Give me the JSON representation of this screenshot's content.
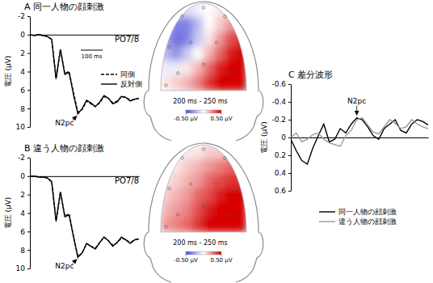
{
  "chart_data": [
    {
      "type": "line",
      "title": "A 同一人物の顔刺激",
      "channel_label": "PO7/8",
      "y_label": "電圧 (μV)",
      "x": [
        -100,
        -80,
        -60,
        -40,
        -20,
        0,
        20,
        40,
        60,
        80,
        100,
        120,
        140,
        160,
        180,
        200,
        220,
        240,
        260,
        280,
        300,
        320,
        340,
        360,
        380,
        400
      ],
      "xlim": [
        -100,
        400
      ],
      "ylim": [
        10,
        -2
      ],
      "yticks": [
        -2,
        0,
        2,
        4,
        6,
        8,
        10
      ],
      "tick_labels": "y",
      "legend": "right",
      "series": [
        {
          "name": "同側",
          "color": "#000000",
          "line_style": "dashed",
          "values": [
            0,
            0.1,
            0,
            0.1,
            0.2,
            0.5,
            4.7,
            1.6,
            4.2,
            4.0,
            6.3,
            8.4,
            8.1,
            7.2,
            7.5,
            7.8,
            7.4,
            6.7,
            6.9,
            7.4,
            7.2,
            6.7,
            6.8,
            7.1,
            7.0,
            6.9
          ]
        },
        {
          "name": "反対側",
          "color": "#000000",
          "line_style": "solid",
          "values": [
            0,
            0.1,
            0,
            0.1,
            0.2,
            0.5,
            4.8,
            1.6,
            4.3,
            4.1,
            6.5,
            8.6,
            8.0,
            7.1,
            7.4,
            7.8,
            7.3,
            6.6,
            6.9,
            7.5,
            7.3,
            6.7,
            6.8,
            7.2,
            7.0,
            6.9
          ]
        }
      ],
      "annotations": [
        {
          "text": "N2pc",
          "x": 120,
          "y": 8.6
        }
      ],
      "scale_bar": {
        "length": 100,
        "label": "100 ms"
      }
    },
    {
      "type": "heatmap",
      "subtitle": "200 ms - 250 ms",
      "cells": [
        [
          0,
          -0.1,
          -0.1,
          -0.05,
          0,
          0.05,
          0.1,
          0.1
        ],
        [
          -0.2,
          -0.35,
          -0.35,
          -0.2,
          0,
          0.1,
          0.2,
          0.25
        ],
        [
          -0.25,
          -0.4,
          -0.35,
          -0.15,
          0.05,
          0.2,
          0.35,
          0.4
        ],
        [
          -0.2,
          -0.3,
          -0.15,
          0,
          0.15,
          0.3,
          0.45,
          0.5
        ],
        [
          -0.05,
          -0.05,
          0.05,
          0.15,
          0.3,
          0.45,
          0.5,
          0.5
        ],
        [
          0.05,
          0.1,
          0.15,
          0.25,
          0.4,
          0.5,
          0.5,
          0.5
        ]
      ],
      "colorbar": {
        "range": [
          -0.5,
          0.5
        ],
        "ticks": [
          {
            "value": -0.5,
            "label": "-0.50 μV"
          },
          {
            "value": 0.5,
            "label": "0.50 μV"
          }
        ]
      }
    },
    {
      "type": "line",
      "title": "B 違う人物の顔刺激",
      "channel_label": "PO7/8",
      "y_label": "電圧 (μV)",
      "x": [
        -100,
        -80,
        -60,
        -40,
        -20,
        0,
        20,
        40,
        60,
        80,
        100,
        120,
        140,
        160,
        180,
        200,
        220,
        240,
        260,
        280,
        300,
        320,
        340,
        360,
        380,
        400
      ],
      "xlim": [
        -100,
        400
      ],
      "ylim": [
        10,
        -2
      ],
      "yticks": [
        -2,
        0,
        2,
        4,
        6,
        8,
        10
      ],
      "tick_labels": "y",
      "series": [
        {
          "name": "同側",
          "color": "#000000",
          "line_style": "dashed",
          "values": [
            0,
            0,
            0.1,
            0.1,
            0.2,
            0.6,
            4.8,
            1.7,
            4.3,
            4.1,
            6.5,
            8.7,
            8.3,
            7.3,
            7.6,
            7.8,
            7.2,
            6.6,
            7.0,
            7.5,
            7.2,
            6.7,
            6.9,
            7.2,
            6.9,
            6.8
          ]
        },
        {
          "name": "反対側",
          "color": "#000000",
          "line_style": "solid",
          "values": [
            0,
            0,
            0.1,
            0.1,
            0.2,
            0.6,
            4.9,
            1.7,
            4.4,
            4.2,
            6.6,
            8.8,
            8.3,
            7.3,
            7.6,
            7.9,
            7.2,
            6.6,
            7.0,
            7.6,
            7.2,
            6.6,
            6.9,
            7.3,
            6.9,
            6.8
          ]
        }
      ],
      "annotations": [
        {
          "text": "N2pc",
          "x": 120,
          "y": 8.8
        }
      ]
    },
    {
      "type": "heatmap",
      "subtitle": "200 ms - 250 ms",
      "cells": [
        [
          0,
          0,
          0.05,
          0.05,
          0.1,
          0.1,
          0.15,
          0.15
        ],
        [
          0,
          0.05,
          0.1,
          0.15,
          0.2,
          0.25,
          0.3,
          0.3
        ],
        [
          0.05,
          0.1,
          0.15,
          0.2,
          0.3,
          0.35,
          0.4,
          0.4
        ],
        [
          0.1,
          0.15,
          0.2,
          0.3,
          0.35,
          0.45,
          0.5,
          0.5
        ],
        [
          0.15,
          0.2,
          0.25,
          0.35,
          0.45,
          0.5,
          0.5,
          0.5
        ],
        [
          0.2,
          0.25,
          0.3,
          0.4,
          0.5,
          0.5,
          0.5,
          0.5
        ]
      ],
      "colorbar": {
        "range": [
          -0.5,
          0.5
        ],
        "ticks": [
          {
            "value": -0.5,
            "label": "-0.50 μV"
          },
          {
            "value": 0.5,
            "label": "0.50 μV"
          }
        ]
      }
    },
    {
      "type": "line",
      "title": "C 差分波形",
      "y_label": "電圧 (μV)",
      "x": [
        -100,
        -80,
        -60,
        -40,
        -20,
        0,
        20,
        40,
        60,
        80,
        100,
        120,
        140,
        160,
        180,
        200,
        220,
        240,
        260,
        280,
        300,
        320,
        340,
        360,
        380,
        400
      ],
      "xlim": [
        -100,
        400
      ],
      "ylim": [
        0.6,
        -0.6
      ],
      "yticks": [
        -0.6,
        -0.4,
        -0.2,
        0,
        0.2,
        0.4,
        0.6
      ],
      "tick_labels": "y",
      "legend": "bottom",
      "series": [
        {
          "name": "同一人物の顔刺激",
          "color": "#000000",
          "line_style": "solid",
          "values": [
            0.02,
            0.15,
            0.26,
            0.3,
            0.12,
            -0.02,
            -0.15,
            0.05,
            0.02,
            -0.1,
            -0.05,
            -0.15,
            -0.22,
            -0.2,
            -0.12,
            -0.02,
            0.02,
            -0.1,
            -0.15,
            -0.2,
            -0.08,
            -0.05,
            -0.15,
            -0.2,
            -0.18,
            -0.14
          ]
        },
        {
          "name": "違う人物の顔刺激",
          "color": "#999999",
          "line_style": "solid",
          "values": [
            0,
            -0.05,
            0.05,
            0.02,
            -0.03,
            -0.05,
            0.02,
            0.06,
            0.08,
            0.1,
            -0.02,
            -0.08,
            -0.2,
            -0.22,
            -0.14,
            -0.06,
            -0.04,
            -0.12,
            -0.2,
            -0.16,
            -0.1,
            -0.12,
            -0.2,
            -0.15,
            -0.12,
            -0.1
          ]
        }
      ],
      "annotations": [
        {
          "text": "N2pc",
          "x": 140,
          "y": -0.22
        }
      ]
    }
  ]
}
